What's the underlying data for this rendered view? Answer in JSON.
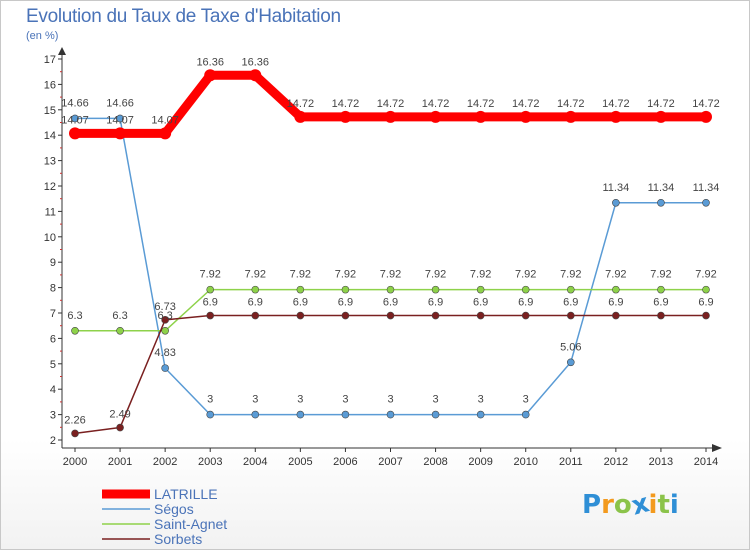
{
  "header": {
    "title": "Evolution du Taux de Taxe d'Habitation",
    "subtitle": "(en %)"
  },
  "chart_data": {
    "type": "line",
    "title": "Evolution du Taux de Taxe d'Habitation",
    "ylabel": "(en %)",
    "xlabel": "",
    "ylim": [
      2,
      17
    ],
    "yticks": [
      2,
      3,
      4,
      5,
      6,
      7,
      8,
      9,
      10,
      11,
      12,
      13,
      14,
      15,
      16,
      17
    ],
    "categories": [
      "2000",
      "2001",
      "2002",
      "2003",
      "2004",
      "2005",
      "2006",
      "2007",
      "2008",
      "2009",
      "2010",
      "2011",
      "2012",
      "2013",
      "2014"
    ],
    "series": [
      {
        "name": "LATRILLE",
        "color": "#ff0000",
        "values": [
          14.07,
          14.07,
          14.07,
          16.36,
          16.36,
          14.72,
          14.72,
          14.72,
          14.72,
          14.72,
          14.72,
          14.72,
          14.72,
          14.72,
          14.72
        ],
        "labels": [
          "14.07",
          "14.07",
          "14.07",
          "16.36",
          "16.36",
          "14.72",
          "14.72",
          "14.72",
          "14.72",
          "14.72",
          "14.72",
          "14.72",
          "14.72",
          "14.72",
          "14.72"
        ]
      },
      {
        "name": "Ségos",
        "color": "#5a9bd5",
        "values": [
          14.66,
          14.66,
          4.83,
          3,
          3,
          3,
          3,
          3,
          3,
          3,
          3,
          5.06,
          11.34,
          11.34,
          11.34
        ],
        "labels": [
          "14.66",
          "14.66",
          "4.83",
          "3",
          "3",
          "3",
          "3",
          "3",
          "3",
          "3",
          "3",
          "5.06",
          "11.34",
          "11.34",
          "11.34"
        ]
      },
      {
        "name": "Saint-Agnet",
        "color": "#8ed24a",
        "values": [
          6.3,
          6.3,
          6.3,
          7.92,
          7.92,
          7.92,
          7.92,
          7.92,
          7.92,
          7.92,
          7.92,
          7.92,
          7.92,
          7.92,
          7.92
        ],
        "labels": [
          "6.3",
          "6.3",
          "6.3",
          "7.92",
          "7.92",
          "7.92",
          "7.92",
          "7.92",
          "7.92",
          "7.92",
          "7.92",
          "7.92",
          "7.92",
          "7.92",
          "7.92"
        ]
      },
      {
        "name": "Sorbets",
        "color": "#7a2020",
        "values": [
          2.26,
          2.49,
          6.73,
          6.9,
          6.9,
          6.9,
          6.9,
          6.9,
          6.9,
          6.9,
          6.9,
          6.9,
          6.9,
          6.9,
          6.9
        ],
        "labels": [
          "2.26",
          "2.49",
          "6.73",
          "6.9",
          "6.9",
          "6.9",
          "6.9",
          "6.9",
          "6.9",
          "6.9",
          "6.9",
          "6.9",
          "6.9",
          "6.9",
          "6.9"
        ]
      }
    ],
    "legend_position": "bottom-left",
    "grid": false
  },
  "logo": {
    "letters": [
      "P",
      "r",
      "o",
      "x",
      "i",
      "t",
      "i"
    ],
    "colors": [
      "#2f8fd6",
      "#f39a1e",
      "#8bc34a",
      "#2f8fd6",
      "#f39a1e",
      "#8bc34a",
      "#2f8fd6"
    ]
  }
}
